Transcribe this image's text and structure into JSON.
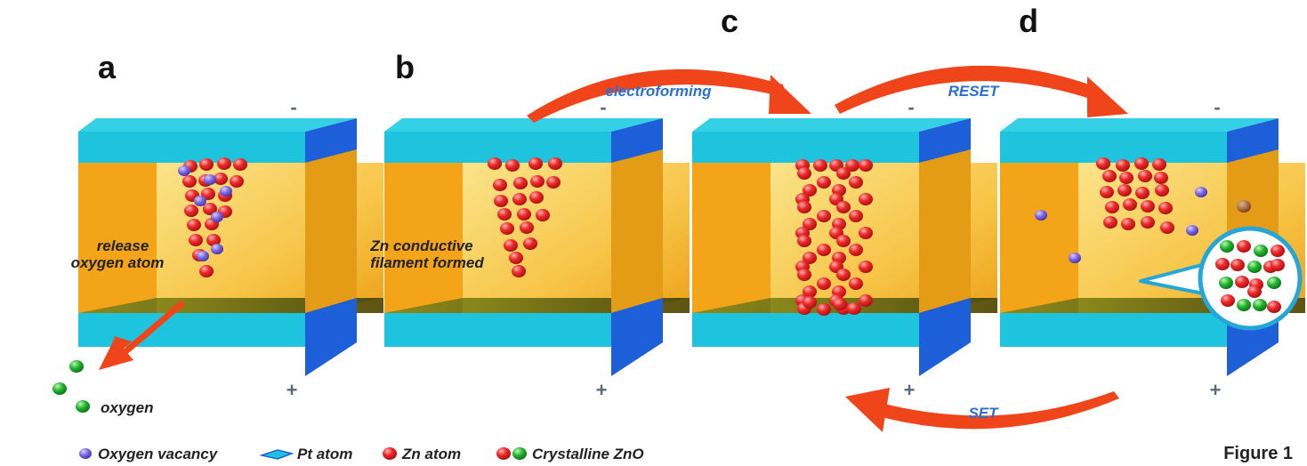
{
  "panels": [
    {
      "letter": "a",
      "top_sign": "-",
      "bottom_sign": "+",
      "annotation": [
        "release",
        "oxygen atom"
      ]
    },
    {
      "letter": "b",
      "top_sign": "-",
      "bottom_sign": "+",
      "annotation": [
        "Zn conductive",
        "filament formed"
      ]
    },
    {
      "letter": "c",
      "top_sign": "-",
      "bottom_sign": "+",
      "annotation": []
    },
    {
      "letter": "d",
      "top_sign": "-",
      "bottom_sign": "+",
      "annotation": []
    }
  ],
  "arrows": {
    "electroforming": "electroforming",
    "reset": "RESET",
    "set": "SET"
  },
  "oxygen_label": "oxygen",
  "legend": {
    "oxygen_vacancy": "Oxygen vacancy",
    "pt_atom": "Pt atom",
    "zn_atom": "Zn atom",
    "crystalline_zno": "Crystalline ZnO"
  },
  "figure_label": "Figure 1",
  "colors": {
    "electrode": "#1ec3dd",
    "electrode_side": "#1d5fd8",
    "oxide": "#f3a514",
    "zn": "#e8202a",
    "vacancy": "#7a63e0",
    "oxygen": "#1fae2a",
    "arrow": "#f0451a"
  }
}
